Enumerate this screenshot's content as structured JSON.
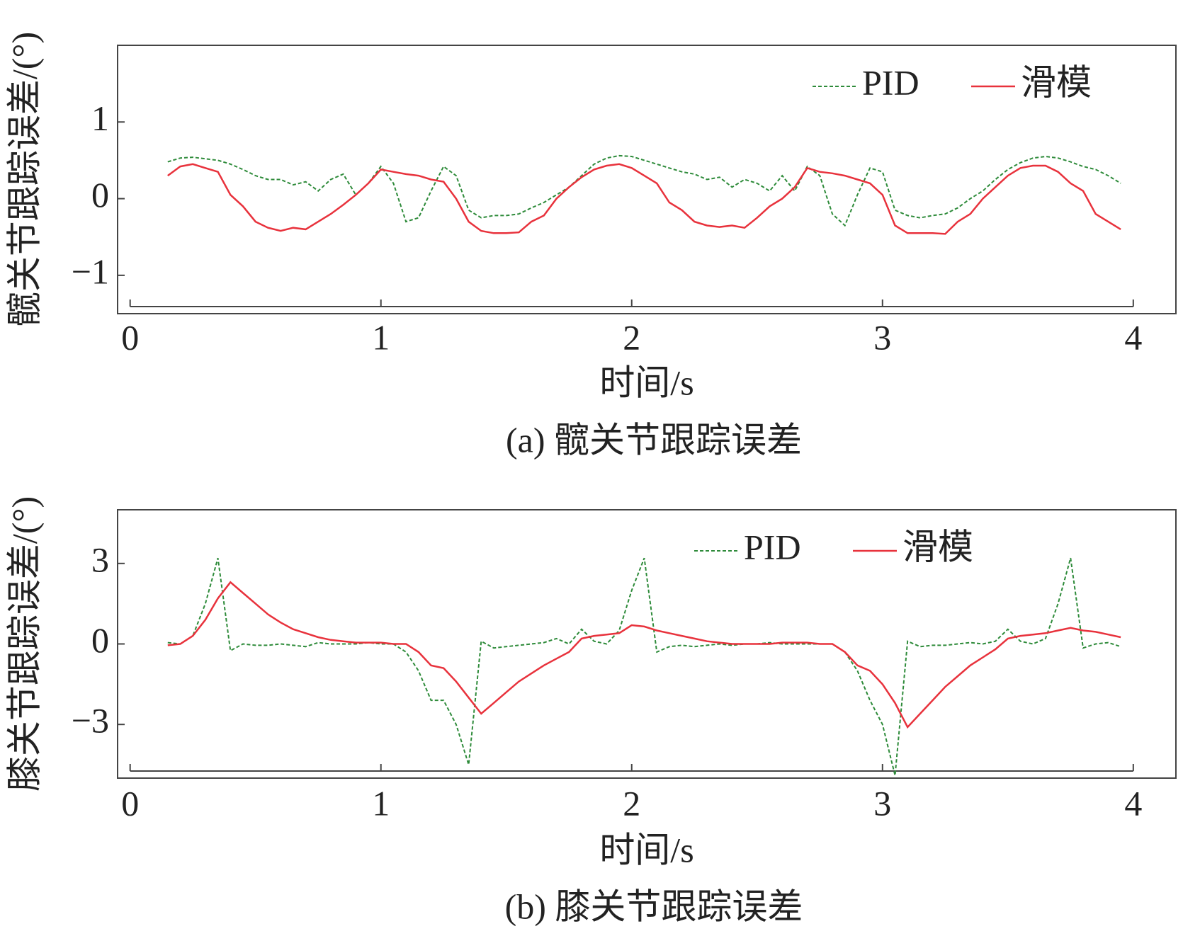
{
  "chart_data": [
    {
      "type": "line",
      "title": "(a) 髋关节跟踪误差",
      "xlabel": "时间/s",
      "ylabel": "髋关节跟踪误差/(°)",
      "xlim": [
        -0.05,
        4.17
      ],
      "ylim": [
        -1.5,
        2
      ],
      "xticks": [
        0,
        1,
        2,
        3,
        4
      ],
      "yticks": [
        {
          "value": -1,
          "label": "−1"
        },
        0,
        1
      ],
      "legend": "upper right",
      "x": [
        0.15,
        0.2,
        0.25,
        0.3,
        0.35,
        0.4,
        0.45,
        0.5,
        0.55,
        0.6,
        0.65,
        0.7,
        0.75,
        0.8,
        0.85,
        0.9,
        0.95,
        1.0,
        1.05,
        1.1,
        1.15,
        1.2,
        1.25,
        1.3,
        1.35,
        1.4,
        1.45,
        1.5,
        1.55,
        1.6,
        1.65,
        1.7,
        1.75,
        1.8,
        1.85,
        1.9,
        1.95,
        2.0,
        2.05,
        2.1,
        2.15,
        2.2,
        2.25,
        2.3,
        2.35,
        2.4,
        2.45,
        2.5,
        2.55,
        2.6,
        2.65,
        2.7,
        2.75,
        2.8,
        2.85,
        2.9,
        2.95,
        3.0,
        3.05,
        3.1,
        3.15,
        3.2,
        3.25,
        3.3,
        3.35,
        3.4,
        3.45,
        3.5,
        3.55,
        3.6,
        3.65,
        3.7,
        3.75,
        3.8,
        3.85,
        3.9,
        3.95
      ],
      "series": [
        {
          "name": "PID",
          "color": "#2e8b3a",
          "dashed": true,
          "values": [
            0.48,
            0.53,
            0.54,
            0.52,
            0.5,
            0.45,
            0.38,
            0.3,
            0.25,
            0.25,
            0.18,
            0.22,
            0.1,
            0.25,
            0.32,
            0.05,
            0.2,
            0.42,
            0.2,
            -0.3,
            -0.25,
            0.1,
            0.42,
            0.3,
            -0.15,
            -0.25,
            -0.22,
            -0.22,
            -0.2,
            -0.12,
            -0.05,
            0.05,
            0.15,
            0.3,
            0.45,
            0.53,
            0.56,
            0.55,
            0.5,
            0.45,
            0.4,
            0.35,
            0.32,
            0.25,
            0.28,
            0.15,
            0.25,
            0.2,
            0.1,
            0.3,
            0.1,
            0.42,
            0.3,
            -0.2,
            -0.35,
            0.05,
            0.4,
            0.35,
            -0.15,
            -0.22,
            -0.25,
            -0.22,
            -0.2,
            -0.12,
            0.0,
            0.1,
            0.25,
            0.38,
            0.47,
            0.53,
            0.55,
            0.53,
            0.48,
            0.42,
            0.38,
            0.3,
            0.2
          ]
        },
        {
          "name": "滑模",
          "color": "#e8323c",
          "dashed": false,
          "values": [
            0.3,
            0.42,
            0.45,
            0.4,
            0.35,
            0.05,
            -0.1,
            -0.3,
            -0.38,
            -0.42,
            -0.38,
            -0.4,
            -0.3,
            -0.2,
            -0.08,
            0.05,
            0.2,
            0.38,
            0.35,
            0.32,
            0.3,
            0.25,
            0.22,
            0.0,
            -0.3,
            -0.42,
            -0.45,
            -0.45,
            -0.44,
            -0.3,
            -0.22,
            0.0,
            0.15,
            0.28,
            0.38,
            0.43,
            0.45,
            0.4,
            0.3,
            0.2,
            -0.05,
            -0.15,
            -0.3,
            -0.35,
            -0.37,
            -0.35,
            -0.38,
            -0.25,
            -0.1,
            0.0,
            0.15,
            0.4,
            0.35,
            0.33,
            0.3,
            0.25,
            0.2,
            0.05,
            -0.35,
            -0.45,
            -0.45,
            -0.45,
            -0.46,
            -0.3,
            -0.2,
            0.0,
            0.15,
            0.3,
            0.4,
            0.43,
            0.43,
            0.35,
            0.2,
            0.1,
            -0.2,
            -0.3,
            -0.4
          ]
        }
      ]
    },
    {
      "type": "line",
      "title": "(b) 膝关节跟踪误差",
      "xlabel": "时间/s",
      "ylabel": "膝关节跟踪误差/(°)",
      "xlim": [
        -0.05,
        4.17
      ],
      "ylim": [
        -5,
        5
      ],
      "xticks": [
        0,
        1,
        2,
        3,
        4
      ],
      "yticks": [
        {
          "value": -3,
          "label": "−3"
        },
        0,
        3
      ],
      "legend": "upper center",
      "x": [
        0.15,
        0.2,
        0.25,
        0.3,
        0.35,
        0.4,
        0.45,
        0.5,
        0.55,
        0.6,
        0.65,
        0.7,
        0.75,
        0.8,
        0.85,
        0.9,
        0.95,
        1.0,
        1.05,
        1.1,
        1.15,
        1.2,
        1.25,
        1.3,
        1.35,
        1.4,
        1.45,
        1.5,
        1.55,
        1.6,
        1.65,
        1.7,
        1.75,
        1.8,
        1.85,
        1.9,
        1.95,
        2.0,
        2.05,
        2.1,
        2.15,
        2.2,
        2.25,
        2.3,
        2.35,
        2.4,
        2.45,
        2.5,
        2.55,
        2.6,
        2.65,
        2.7,
        2.75,
        2.8,
        2.85,
        2.9,
        2.95,
        3.0,
        3.05,
        3.1,
        3.15,
        3.2,
        3.25,
        3.3,
        3.35,
        3.4,
        3.45,
        3.5,
        3.55,
        3.6,
        3.65,
        3.7,
        3.75,
        3.8,
        3.85,
        3.9,
        3.95
      ],
      "series": [
        {
          "name": "PID",
          "color": "#2e8b3a",
          "dashed": true,
          "values": [
            0.05,
            0.0,
            0.3,
            1.5,
            3.2,
            -0.25,
            0.0,
            -0.05,
            -0.05,
            0.0,
            -0.05,
            -0.1,
            0.05,
            0.0,
            0.0,
            0.0,
            0.05,
            0.0,
            0.0,
            -0.3,
            -1.0,
            -2.1,
            -2.1,
            -3.0,
            -4.5,
            0.1,
            -0.15,
            -0.1,
            -0.05,
            0.0,
            0.05,
            0.2,
            0.0,
            0.55,
            0.1,
            0.0,
            0.5,
            2.0,
            3.2,
            -0.3,
            -0.1,
            -0.05,
            -0.1,
            -0.05,
            0.0,
            -0.05,
            0.0,
            0.0,
            0.05,
            0.0,
            0.0,
            0.0,
            0.0,
            0.0,
            -0.3,
            -1.0,
            -2.1,
            -3.0,
            -4.9,
            0.1,
            -0.1,
            -0.05,
            -0.05,
            0.0,
            0.05,
            0.0,
            0.1,
            0.55,
            0.1,
            0.0,
            0.2,
            1.5,
            3.2,
            -0.15,
            0.0,
            0.05,
            -0.1
          ]
        },
        {
          "name": "滑模",
          "color": "#e8323c",
          "dashed": false,
          "values": [
            -0.05,
            0.0,
            0.3,
            0.9,
            1.7,
            2.3,
            1.9,
            1.5,
            1.1,
            0.8,
            0.55,
            0.4,
            0.25,
            0.15,
            0.1,
            0.05,
            0.05,
            0.05,
            0.0,
            0.0,
            -0.3,
            -0.8,
            -0.9,
            -1.4,
            -2.0,
            -2.6,
            -2.2,
            -1.8,
            -1.4,
            -1.1,
            -0.8,
            -0.55,
            -0.3,
            0.2,
            0.3,
            0.35,
            0.4,
            0.7,
            0.65,
            0.5,
            0.4,
            0.3,
            0.2,
            0.1,
            0.05,
            0.0,
            0.0,
            0.0,
            0.0,
            0.05,
            0.05,
            0.05,
            0.0,
            0.0,
            -0.3,
            -0.8,
            -1.0,
            -1.5,
            -2.2,
            -3.1,
            -2.6,
            -2.1,
            -1.6,
            -1.2,
            -0.8,
            -0.5,
            -0.2,
            0.2,
            0.3,
            0.35,
            0.4,
            0.5,
            0.6,
            0.5,
            0.45,
            0.35,
            0.25
          ]
        }
      ]
    }
  ]
}
